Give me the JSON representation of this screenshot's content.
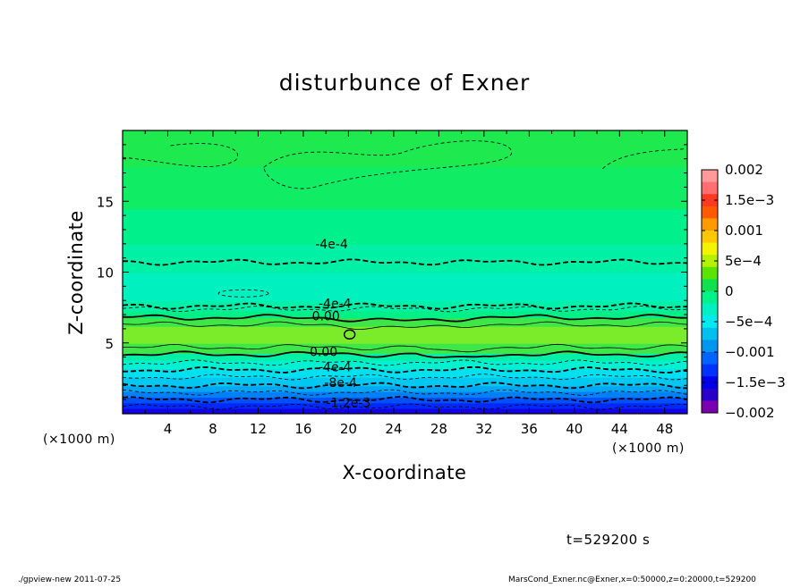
{
  "chart_data": {
    "type": "contour",
    "title": "disturbunce of Exner",
    "xlabel": "X-coordinate",
    "ylabel": "Z-coordinate",
    "x_unit": "(×1000 m)",
    "y_unit": "(×1000 m)",
    "xlim": [
      0,
      50
    ],
    "ylim": [
      0,
      20
    ],
    "x_ticks": [
      4,
      8,
      12,
      16,
      20,
      24,
      28,
      32,
      36,
      40,
      44,
      48
    ],
    "y_ticks": [
      5,
      10,
      15
    ],
    "colorbar": {
      "min": -0.002,
      "max": 0.002,
      "tick_labels": [
        "0.002",
        "1.5e-3",
        "0.001",
        "5e-4",
        "0",
        "-5e-4",
        "-0.001",
        "-1.5e-3",
        "-0.002"
      ],
      "tick_values": [
        0.002,
        0.0015,
        0.001,
        0.0005,
        0,
        -0.0005,
        -0.001,
        -0.0015,
        -0.002
      ],
      "colors_top_to_bottom": [
        "#ff9a9a",
        "#ff6f6f",
        "#ff3a20",
        "#ff5a00",
        "#ff9a00",
        "#ffc800",
        "#f4f400",
        "#b4f000",
        "#5ae400",
        "#10e050",
        "#00f08a",
        "#00f0c4",
        "#00e8f0",
        "#00c0f0",
        "#0096f0",
        "#0064ff",
        "#0032ff",
        "#0000e8",
        "#2800c8",
        "#7800b0"
      ]
    },
    "bands": [
      {
        "z_from": 0,
        "z_to": 0.4,
        "color": "#1400e0"
      },
      {
        "z_from": 0.4,
        "z_to": 0.8,
        "color": "#0028ff"
      },
      {
        "z_from": 0.8,
        "z_to": 1.2,
        "color": "#0050ff"
      },
      {
        "z_from": 1.2,
        "z_to": 1.6,
        "color": "#0080f8"
      },
      {
        "z_from": 1.6,
        "z_to": 2.0,
        "color": "#00a8f4"
      },
      {
        "z_from": 2.0,
        "z_to": 2.6,
        "color": "#00c8f0"
      },
      {
        "z_from": 2.6,
        "z_to": 3.2,
        "color": "#00e0ee"
      },
      {
        "z_from": 3.2,
        "z_to": 3.8,
        "color": "#00f0d2"
      },
      {
        "z_from": 3.8,
        "z_to": 4.3,
        "color": "#00f0a8"
      },
      {
        "z_from": 4.3,
        "z_to": 5.0,
        "color": "#3ee648"
      },
      {
        "z_from": 5.0,
        "z_to": 6.2,
        "color": "#7aec2a"
      },
      {
        "z_from": 6.2,
        "z_to": 6.8,
        "color": "#3ee648"
      },
      {
        "z_from": 6.8,
        "z_to": 7.3,
        "color": "#00f088"
      },
      {
        "z_from": 7.3,
        "z_to": 8.0,
        "color": "#00f0a8"
      },
      {
        "z_from": 8.0,
        "z_to": 10.0,
        "color": "#00f0c0"
      },
      {
        "z_from": 10.0,
        "z_to": 12.0,
        "color": "#00f0a6"
      },
      {
        "z_from": 12.0,
        "z_to": 14.5,
        "color": "#00f08c"
      },
      {
        "z_from": 14.5,
        "z_to": 17.5,
        "color": "#10ec64"
      },
      {
        "z_from": 17.5,
        "z_to": 20.0,
        "color": "#1eea50"
      }
    ],
    "contours": [
      {
        "z": 0.5,
        "style": "dashed"
      },
      {
        "z": 1.0,
        "style": "dashed-bold"
      },
      {
        "z": 1.5,
        "style": "dashed"
      },
      {
        "z": 2.0,
        "style": "dashed-bold"
      },
      {
        "z": 2.6,
        "style": "dashed"
      },
      {
        "z": 3.1,
        "style": "dashed-bold"
      },
      {
        "z": 3.6,
        "style": "dashed"
      },
      {
        "z": 4.2,
        "style": "solid-bold"
      },
      {
        "z": 4.7,
        "style": "solid"
      },
      {
        "z": 6.3,
        "style": "solid"
      },
      {
        "z": 6.8,
        "style": "solid-bold"
      },
      {
        "z": 7.4,
        "style": "dashed"
      },
      {
        "z": 7.6,
        "style": "dashed-bold"
      },
      {
        "z": 10.7,
        "style": "dashed-bold"
      }
    ],
    "contour_labels": [
      {
        "text": "-1.2e-3",
        "x": 20,
        "z": 0.8
      },
      {
        "text": "-8e-4",
        "x": 19.3,
        "z": 2.2
      },
      {
        "text": "-4e-4",
        "x": 18.8,
        "z": 3.3
      },
      {
        "text": "0.00",
        "x": 17.8,
        "z": 4.4
      },
      {
        "text": "0.00",
        "x": 18,
        "z": 6.9
      },
      {
        "text": "-4e-4",
        "x": 18.8,
        "z": 7.8
      },
      {
        "text": "-4e-4",
        "x": 18.5,
        "z": 12.0
      }
    ]
  },
  "time_label": "t=529200 s",
  "footer_left": "./gpview-new   2011-07-25",
  "footer_right": "MarsCond_Exner.nc@Exner,x=0:50000,z=0:20000,t=529200"
}
